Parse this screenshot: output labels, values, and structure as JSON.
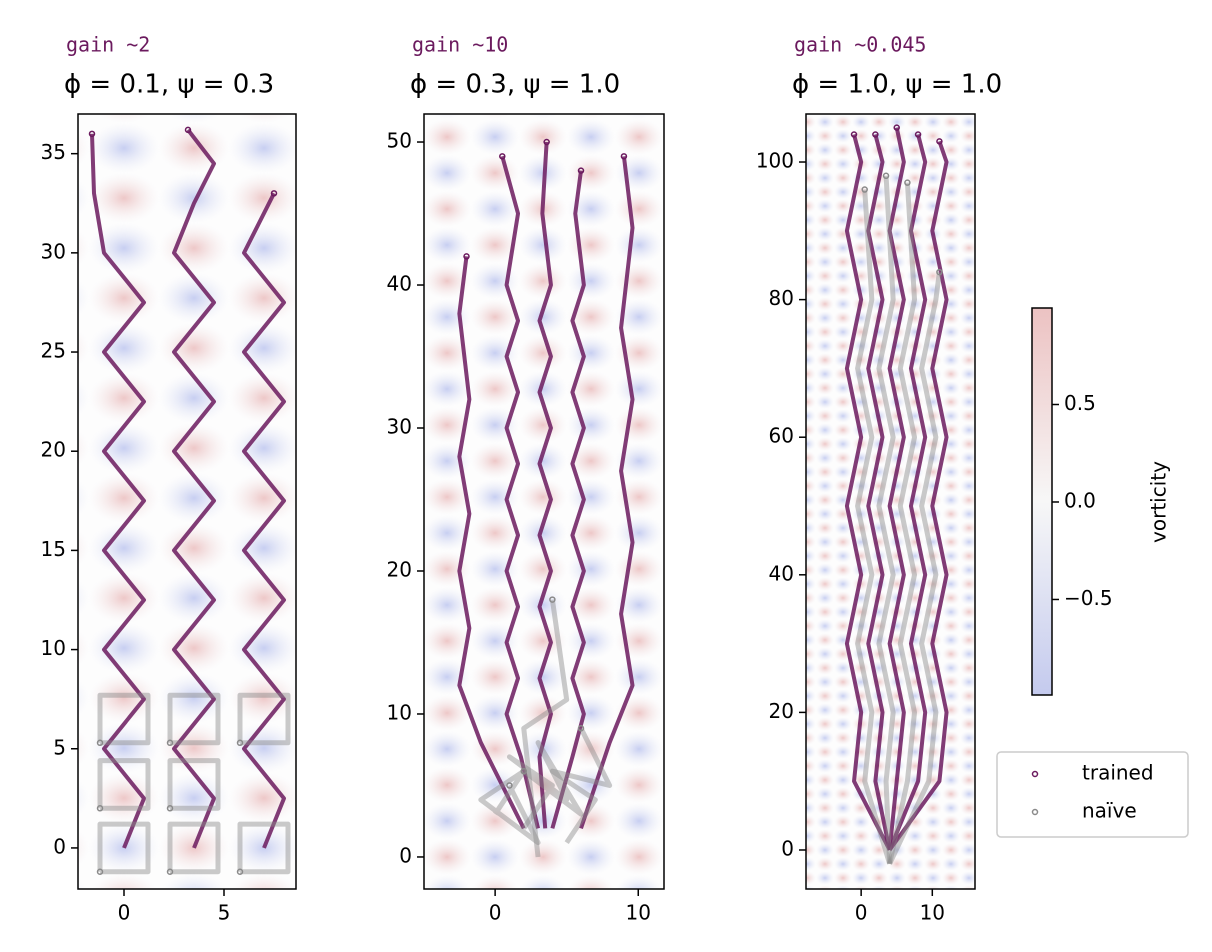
{
  "chart_data": [
    {
      "type": "line",
      "annotation": "gain ~2",
      "title": "ϕ = 0.1, ψ = 0.3",
      "xlim": [
        -2.3,
        8.6
      ],
      "ylim": [
        -2.07,
        37.0
      ],
      "xticks": [
        0,
        5
      ],
      "yticks": [
        0,
        5,
        10,
        15,
        20,
        25,
        30,
        35
      ],
      "series": [
        {
          "name": "trained",
          "color": "#6b1a5e",
          "lines": [
            {
              "x": [
                0,
                1,
                -1,
                1,
                -1,
                1,
                -1,
                1,
                -1,
                1,
                -1,
                1,
                -1,
                -1.5,
                -1.6
              ],
              "y": [
                0,
                2.5,
                5,
                7.5,
                10,
                12.5,
                15,
                17.5,
                20,
                22.5,
                25,
                27.5,
                30,
                33,
                36
              ]
            },
            {
              "x": [
                3.5,
                4.5,
                2.5,
                4.5,
                2.5,
                4.5,
                2.5,
                4.5,
                2.5,
                4.5,
                2.5,
                4.5,
                2.5,
                3.5,
                4.5,
                3.2
              ],
              "y": [
                0,
                2.5,
                5,
                7.5,
                10,
                12.5,
                15,
                17.5,
                20,
                22.5,
                25,
                27.5,
                30,
                32.5,
                34.5,
                36.2
              ]
            },
            {
              "x": [
                7,
                8,
                6,
                8,
                6,
                8,
                6,
                8,
                6,
                8,
                6,
                8,
                6,
                7.5
              ],
              "y": [
                0,
                2.5,
                5,
                7.5,
                10,
                12.5,
                15,
                17.5,
                20,
                22.5,
                25,
                27.5,
                30,
                33
              ]
            }
          ]
        },
        {
          "name": "naïve",
          "color": "#8a8a8a",
          "lines": [
            {
              "x": [
                -1.2,
                1.2,
                1.2,
                -1.2,
                -1.2
              ],
              "y": [
                -1.2,
                -1.2,
                1.2,
                1.2,
                -1.2
              ]
            },
            {
              "x": [
                2.3,
                4.7,
                4.7,
                2.3,
                2.3
              ],
              "y": [
                -1.2,
                -1.2,
                1.2,
                1.2,
                -1.2
              ]
            },
            {
              "x": [
                5.8,
                8.2,
                8.2,
                5.8,
                5.8
              ],
              "y": [
                -1.2,
                -1.2,
                1.2,
                1.2,
                -1.2
              ]
            },
            {
              "x": [
                -1.2,
                1.2,
                1.2,
                -1.2,
                -1.2
              ],
              "y": [
                2,
                2,
                4.4,
                4.4,
                2
              ]
            },
            {
              "x": [
                2.3,
                4.7,
                4.7,
                2.3,
                2.3
              ],
              "y": [
                2,
                2,
                4.4,
                4.4,
                2
              ]
            },
            {
              "x": [
                -1.2,
                1.2,
                1.2,
                -1.2,
                -1.2
              ],
              "y": [
                5.3,
                5.3,
                7.7,
                7.7,
                5.3
              ]
            },
            {
              "x": [
                2.3,
                4.7,
                4.7,
                2.3,
                2.3
              ],
              "y": [
                5.3,
                5.3,
                7.7,
                7.7,
                5.3
              ]
            },
            {
              "x": [
                5.8,
                8.2,
                8.2,
                5.8,
                5.8
              ],
              "y": [
                5.3,
                5.3,
                7.7,
                7.7,
                5.3
              ]
            }
          ]
        }
      ]
    },
    {
      "type": "line",
      "annotation": "gain ~10",
      "title": "ϕ = 0.3, ψ = 1.0",
      "xlim": [
        -4.97,
        11.8
      ],
      "ylim": [
        -2.24,
        51.96
      ],
      "xticks": [
        0,
        10
      ],
      "yticks": [
        0,
        10,
        20,
        30,
        40,
        50
      ],
      "series": [
        {
          "name": "trained",
          "color": "#6b1a5e",
          "lines": [
            {
              "x": [
                3,
                1.8,
                0.8,
                1.6,
                0.8,
                1.6,
                0.8,
                1.6,
                0.8,
                1.6,
                0.8,
                1.6,
                0.8,
                1.6,
                0.8,
                1.6,
                0.5
              ],
              "y": [
                2,
                7,
                10,
                12.5,
                15,
                17.5,
                20,
                22.5,
                25,
                27.5,
                30,
                32.5,
                35,
                37.5,
                40,
                45,
                49
              ]
            },
            {
              "x": [
                3.5,
                3.1,
                3.9,
                3.1,
                3.9,
                3.1,
                3.9,
                3.1,
                3.9,
                3.1,
                3.9,
                3.1,
                3.9,
                3.1,
                3.9,
                3.3,
                3.6
              ],
              "y": [
                2,
                7,
                10,
                12.5,
                15,
                17.5,
                20,
                22.5,
                25,
                27.5,
                30,
                32.5,
                35,
                37.5,
                40,
                45,
                50
              ]
            },
            {
              "x": [
                4,
                5.4,
                6.2,
                5.4,
                6.2,
                5.4,
                6.2,
                5.4,
                6.2,
                5.4,
                6.2,
                5.4,
                6.2,
                5.4,
                6.2,
                5.6,
                6
              ],
              "y": [
                2,
                7,
                10,
                12.5,
                15,
                17.5,
                20,
                22.5,
                25,
                27.5,
                30,
                32.5,
                35,
                37.5,
                40,
                45,
                48
              ]
            },
            {
              "x": [
                2,
                -1,
                -2.5,
                -1.8,
                -2.5,
                -1.8,
                -2.5,
                -1.8,
                -2.5,
                -2
              ],
              "y": [
                2,
                8,
                12,
                16,
                20,
                24,
                28,
                32,
                38,
                42
              ]
            },
            {
              "x": [
                6,
                8,
                9.6,
                8.8,
                9.6,
                8.8,
                9.6,
                8.8,
                9.6,
                9
              ],
              "y": [
                2,
                8,
                12,
                17,
                22,
                27,
                32,
                37,
                44,
                49
              ]
            }
          ]
        },
        {
          "name": "naïve",
          "color": "#8a8a8a",
          "lines": [
            {
              "x": [
                2,
                4,
                1,
                5,
                3,
                6,
                2
              ],
              "y": [
                2,
                5,
                7,
                4,
                8,
                3,
                6
              ]
            },
            {
              "x": [
                0,
                2,
                -1,
                3,
                1
              ],
              "y": [
                3,
                6,
                4,
                1,
                5
              ]
            },
            {
              "x": [
                5,
                7,
                4,
                8,
                6
              ],
              "y": [
                1,
                4,
                6,
                5,
                9
              ]
            },
            {
              "x": [
                3,
                2,
                5,
                4
              ],
              "y": [
                0,
                9,
                11,
                18
              ]
            }
          ]
        }
      ]
    },
    {
      "type": "line",
      "annotation": "gain ~0.045",
      "title": "ϕ = 1.0, ψ = 1.0",
      "xlim": [
        -7.75,
        16.0
      ],
      "ylim": [
        -5.67,
        106.98
      ],
      "xticks": [
        0,
        10
      ],
      "yticks": [
        0,
        20,
        40,
        60,
        80,
        100
      ],
      "series": [
        {
          "name": "trained",
          "color": "#6b1a5e",
          "lines": [
            {
              "x": [
                4,
                -1,
                0,
                -2,
                0,
                -2,
                0,
                -2,
                0,
                -2,
                0,
                -1
              ],
              "y": [
                0,
                10,
                20,
                30,
                40,
                50,
                60,
                70,
                80,
                90,
                100,
                104
              ]
            },
            {
              "x": [
                4,
                2,
                3,
                1,
                3,
                1,
                3,
                1,
                3,
                1,
                3,
                2
              ],
              "y": [
                0,
                10,
                20,
                30,
                40,
                50,
                60,
                70,
                80,
                90,
                100,
                104
              ]
            },
            {
              "x": [
                4,
                5,
                6,
                4,
                6,
                4,
                6,
                4,
                6,
                4,
                6,
                5
              ],
              "y": [
                0,
                10,
                20,
                30,
                40,
                50,
                60,
                70,
                80,
                90,
                100,
                105
              ]
            },
            {
              "x": [
                4,
                8,
                9,
                7,
                9,
                7,
                9,
                7,
                9,
                7,
                9,
                8
              ],
              "y": [
                0,
                10,
                20,
                30,
                40,
                50,
                60,
                70,
                80,
                90,
                100,
                104
              ]
            },
            {
              "x": [
                4,
                11,
                12,
                10,
                12,
                10,
                12,
                10,
                12,
                10,
                12,
                11
              ],
              "y": [
                0,
                10,
                20,
                30,
                40,
                50,
                60,
                70,
                80,
                90,
                100,
                103
              ]
            }
          ]
        },
        {
          "name": "naïve",
          "color": "#8a8a8a",
          "lines": [
            {
              "x": [
                4,
                0.5,
                1.5,
                -0.5,
                1.5,
                -0.5,
                1.5,
                -0.5,
                1.5,
                0.5
              ],
              "y": [
                -2,
                10,
                20,
                30,
                40,
                50,
                60,
                70,
                80,
                96
              ]
            },
            {
              "x": [
                4,
                3.5,
                4.5,
                2.5,
                4.5,
                2.5,
                4.5,
                2.5,
                4.5,
                3.5
              ],
              "y": [
                -2,
                10,
                20,
                30,
                40,
                50,
                60,
                70,
                80,
                98
              ]
            },
            {
              "x": [
                4,
                6.5,
                7.5,
                5.5,
                7.5,
                5.5,
                7.5,
                5.5,
                7.5,
                6.5
              ],
              "y": [
                -2,
                10,
                20,
                30,
                40,
                50,
                60,
                70,
                80,
                97
              ]
            },
            {
              "x": [
                4,
                9.5,
                10.5,
                8.5,
                10.5,
                8.5,
                10.5,
                8.5,
                10.5,
                11
              ],
              "y": [
                -2,
                10,
                20,
                30,
                40,
                50,
                60,
                70,
                80,
                84
              ]
            }
          ]
        }
      ]
    }
  ],
  "colorbar": {
    "label": "vorticity",
    "lim": [
      -0.99,
      0.995
    ],
    "colors": [
      "#c4caee",
      "#f7f7f7",
      "#ecc2c2"
    ],
    "ticks": [
      0.5,
      {
        "value": 0,
        "label": "0.0"
      },
      {
        "value": -0.5,
        "label": "−0.5"
      }
    ]
  },
  "legend": {
    "position": "lower right"
  }
}
